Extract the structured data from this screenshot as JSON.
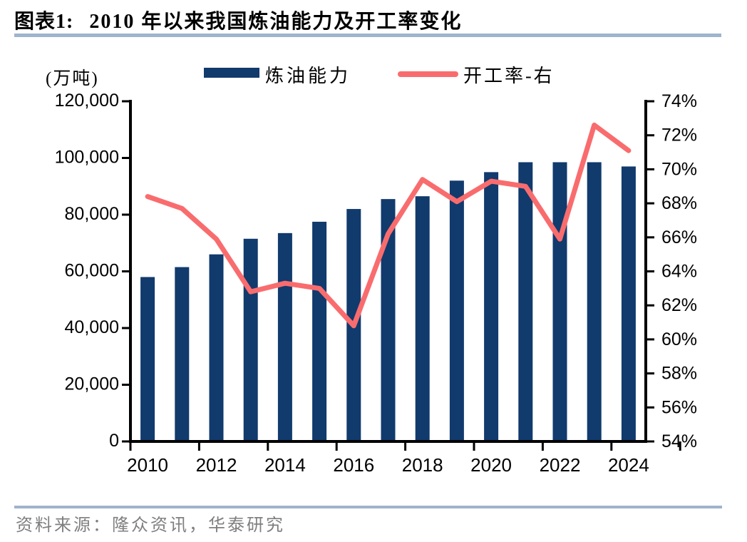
{
  "header": {
    "chart_label": "图表1:",
    "title": "2010 年以来我国炼油能力及开工率变化"
  },
  "colors": {
    "bar": "#113a6d",
    "line": "#f96c6e",
    "rule": "#9fb4cd",
    "axis": "#000000",
    "source_text": "#7f7f7f"
  },
  "legend": {
    "items": [
      {
        "label": "炼油能力",
        "type": "bar"
      },
      {
        "label": "开工率-右",
        "type": "line"
      }
    ]
  },
  "footer": {
    "source": "资料来源：隆众资讯，华泰研究"
  },
  "chart_data": {
    "type": "bar",
    "subtype": "bar+line dual-axis",
    "title": "2010 年以来我国炼油能力及开工率变化",
    "categories": [
      "2010",
      "2011",
      "2012",
      "2013",
      "2014",
      "2015",
      "2016",
      "2017",
      "2018",
      "2019",
      "2020",
      "2021",
      "2022",
      "2023",
      "2024"
    ],
    "series": [
      {
        "name": "炼油能力",
        "type": "bar",
        "axis": "left",
        "unit": "万吨",
        "values": [
          58000,
          61500,
          66000,
          71500,
          73500,
          77500,
          82000,
          85500,
          86500,
          92000,
          95000,
          98500,
          98500,
          98500,
          97000
        ]
      },
      {
        "name": "开工率-右",
        "type": "line",
        "axis": "right",
        "unit": "%",
        "values": [
          68.4,
          67.7,
          65.9,
          62.8,
          63.3,
          63.0,
          60.8,
          66.2,
          69.4,
          68.1,
          69.3,
          69.0,
          65.9,
          72.6,
          71.1
        ]
      }
    ],
    "left_axis": {
      "title": "(万吨)",
      "min": 0,
      "max": 120000,
      "tick_interval": 20000,
      "tick_labels": [
        "0",
        "20,000",
        "40,000",
        "60,000",
        "80,000",
        "100,000",
        "120,000"
      ]
    },
    "right_axis": {
      "min": 54,
      "max": 74,
      "tick_interval": 2,
      "tick_labels": [
        "54%",
        "56%",
        "58%",
        "60%",
        "62%",
        "64%",
        "66%",
        "68%",
        "70%",
        "72%",
        "74%"
      ]
    },
    "x_axis": {
      "tick_labels": [
        "2010",
        "2012",
        "2014",
        "2016",
        "2018",
        "2020",
        "2022",
        "2024"
      ],
      "label_every": 2
    },
    "grid": false,
    "legend_position": "top"
  }
}
